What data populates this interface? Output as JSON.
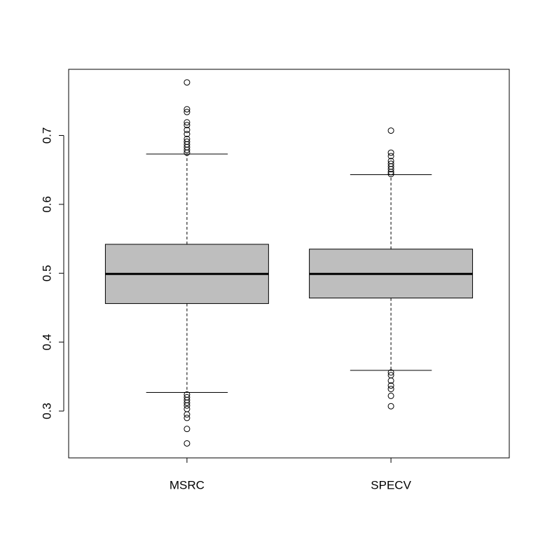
{
  "chart_data": {
    "type": "box",
    "categories": [
      "MSRC",
      "SPECV"
    ],
    "color": "#bebebe",
    "ylim": [
      0.232,
      0.796
    ],
    "yticks": [
      0.3,
      0.4,
      0.5,
      0.6,
      0.7
    ],
    "boxes": [
      {
        "whislo": 0.327,
        "q1": 0.456,
        "median": 0.499,
        "q3": 0.542,
        "whishi": 0.673,
        "outliers": [
          0.777,
          0.738,
          0.734,
          0.719,
          0.715,
          0.708,
          0.702,
          0.695,
          0.691,
          0.687,
          0.683,
          0.679,
          0.675,
          0.324,
          0.32,
          0.316,
          0.312,
          0.308,
          0.303,
          0.295,
          0.29,
          0.274,
          0.253
        ]
      },
      {
        "whislo": 0.359,
        "q1": 0.464,
        "median": 0.499,
        "q3": 0.535,
        "whishi": 0.643,
        "outliers": [
          0.707,
          0.675,
          0.67,
          0.663,
          0.659,
          0.655,
          0.651,
          0.647,
          0.644,
          0.356,
          0.352,
          0.344,
          0.337,
          0.332,
          0.322,
          0.307
        ]
      }
    ]
  }
}
